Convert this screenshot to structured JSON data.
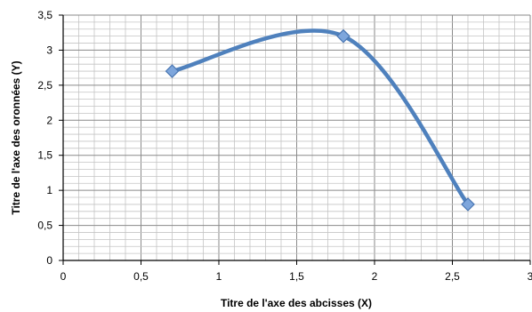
{
  "chart_data": {
    "type": "scatter",
    "title": "",
    "xlabel": "Titre de l'axe des abcisses (X)",
    "ylabel": "Titre de l'axe des oronnées (Y)",
    "xlim": [
      0,
      3
    ],
    "ylim": [
      0,
      3.5
    ],
    "x_ticks": [
      0,
      0.5,
      1,
      1.5,
      2,
      2.5,
      3
    ],
    "y_ticks": [
      0,
      0.5,
      1,
      1.5,
      2,
      2.5,
      3,
      3.5
    ],
    "x_tick_labels": [
      "0",
      "0,5",
      "1",
      "1,5",
      "2",
      "2,5",
      "3"
    ],
    "y_tick_labels": [
      "0",
      "0,5",
      "1",
      "1,5",
      "2",
      "2,5",
      "3",
      "3,5"
    ],
    "grid": true,
    "smooth_line": true,
    "series": [
      {
        "x": [
          0.7,
          1.8,
          2.6
        ],
        "y": [
          2.7,
          3.2,
          0.8
        ],
        "color": "#4f81bd",
        "marker": "diamond"
      }
    ]
  }
}
